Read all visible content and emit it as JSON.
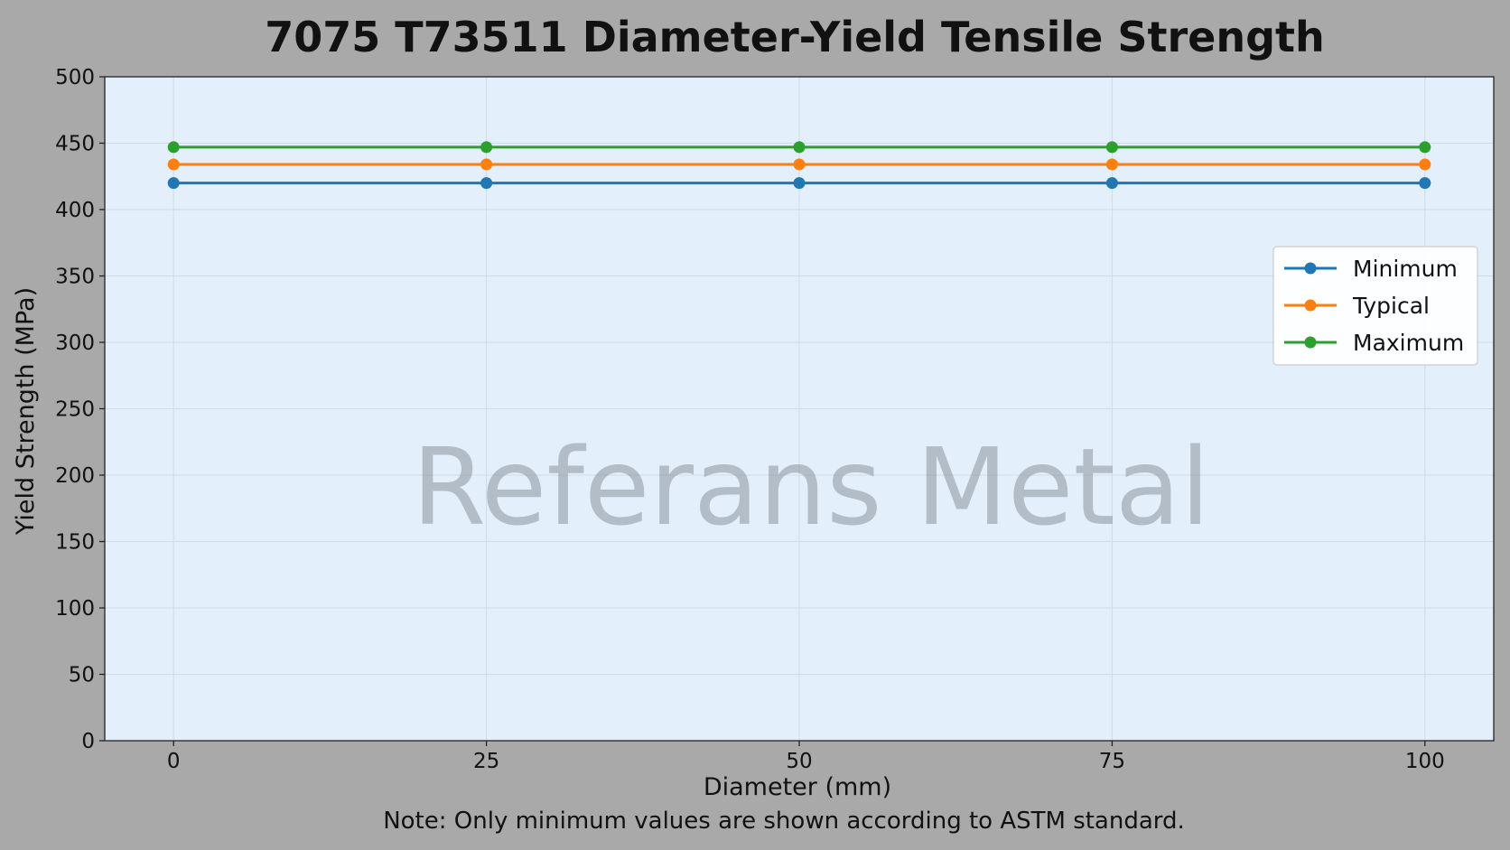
{
  "chart_data": {
    "type": "line",
    "title": "7075 T73511 Diameter-Yield Tensile Strength",
    "xlabel": "Diameter (mm)",
    "ylabel": "Yield Strength (MPa)",
    "x": [
      0,
      25,
      50,
      75,
      100
    ],
    "xlim": [
      -5.5,
      105.5
    ],
    "ylim": [
      0,
      500
    ],
    "xticks": [
      "0",
      "25",
      "50",
      "75",
      "100"
    ],
    "yticks": [
      "0",
      "50",
      "100",
      "150",
      "200",
      "250",
      "300",
      "350",
      "400",
      "450",
      "500"
    ],
    "series": [
      {
        "name": "Minimum",
        "color": "#1f77b4",
        "values": [
          420,
          420,
          420,
          420,
          420
        ]
      },
      {
        "name": "Typical",
        "color": "#ff7f0e",
        "values": [
          434,
          434,
          434,
          434,
          434
        ]
      },
      {
        "name": "Maximum",
        "color": "#2ca02c",
        "values": [
          447,
          447,
          447,
          447,
          447
        ]
      }
    ],
    "grid": true,
    "legend_position": "right",
    "note": "Note: Only minimum values are shown according to ASTM standard.",
    "watermark": "Referans Metal",
    "background_color": "#e3effa",
    "page_color": "#a9a9a9"
  }
}
